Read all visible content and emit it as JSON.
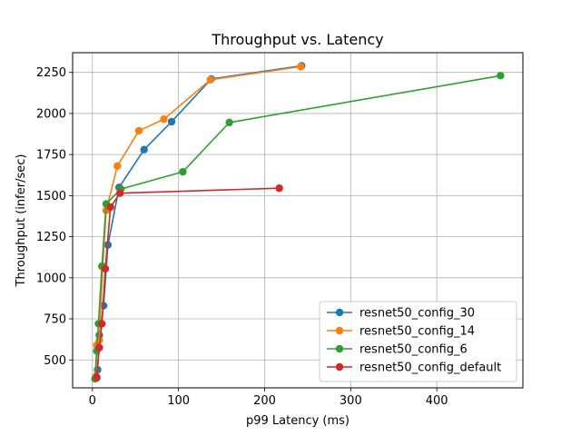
{
  "chart_data": {
    "type": "line",
    "title": "Throughput vs. Latency",
    "xlabel": "p99 Latency (ms)",
    "ylabel": "Throughput (infer/sec)",
    "xlim": [
      -23,
      500
    ],
    "ylim": [
      330,
      2370
    ],
    "xticks": [
      0,
      100,
      200,
      300,
      400
    ],
    "yticks": [
      500,
      750,
      1000,
      1250,
      1500,
      1750,
      2000,
      2250
    ],
    "grid": true,
    "legend_position": "lower-right",
    "series": [
      {
        "name": "resnet50_config_30",
        "color": "#1f77b4",
        "points": [
          [
            5,
            390
          ],
          [
            6,
            440
          ],
          [
            8,
            650
          ],
          [
            13,
            830
          ],
          [
            18,
            1200
          ],
          [
            31,
            1550
          ],
          [
            60,
            1780
          ],
          [
            92,
            1950
          ],
          [
            138,
            2210
          ],
          [
            243,
            2290
          ]
        ]
      },
      {
        "name": "resnet50_config_14",
        "color": "#ff7f0e",
        "points": [
          [
            4,
            400
          ],
          [
            5,
            590
          ],
          [
            8,
            620
          ],
          [
            12,
            1070
          ],
          [
            16,
            1410
          ],
          [
            29,
            1680
          ],
          [
            54,
            1895
          ],
          [
            83,
            1965
          ],
          [
            137,
            2205
          ],
          [
            242,
            2285
          ]
        ]
      },
      {
        "name": "resnet50_config_6",
        "color": "#2ca02c",
        "points": [
          [
            3,
            385
          ],
          [
            5,
            555
          ],
          [
            7,
            720
          ],
          [
            11,
            1070
          ],
          [
            16,
            1450
          ],
          [
            33,
            1540
          ],
          [
            105,
            1645
          ],
          [
            159,
            1945
          ],
          [
            474,
            2230
          ]
        ]
      },
      {
        "name": "resnet50_config_default",
        "color": "#d62728",
        "points": [
          [
            5,
            395
          ],
          [
            8,
            575
          ],
          [
            11,
            720
          ],
          [
            15,
            1055
          ],
          [
            21,
            1430
          ],
          [
            32,
            1515
          ],
          [
            217,
            1545
          ]
        ]
      }
    ]
  }
}
